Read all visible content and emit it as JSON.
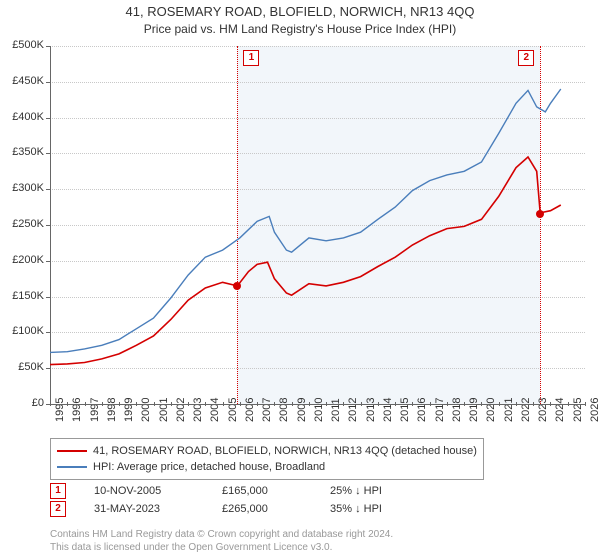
{
  "title": "41, ROSEMARY ROAD, BLOFIELD, NORWICH, NR13 4QQ",
  "subtitle": "Price paid vs. HM Land Registry's House Price Index (HPI)",
  "chart": {
    "type": "line",
    "x_years": [
      1995,
      1996,
      1997,
      1998,
      1999,
      2000,
      2001,
      2002,
      2003,
      2004,
      2005,
      2006,
      2007,
      2008,
      2009,
      2010,
      2011,
      2012,
      2013,
      2014,
      2015,
      2016,
      2017,
      2018,
      2019,
      2020,
      2021,
      2022,
      2023,
      2024,
      2025,
      2026
    ],
    "xlim": [
      1995,
      2026
    ],
    "ylim": [
      0,
      500000
    ],
    "ytick_step": 50000,
    "y_prefix": "£",
    "y_suffixes": [
      "0",
      "50K",
      "100K",
      "150K",
      "200K",
      "250K",
      "300K",
      "350K",
      "400K",
      "450K",
      "500K"
    ],
    "grid_color": "#c8c8c8",
    "axis_color": "#666666",
    "background_color": "#ffffff",
    "span_shade_color": "#f2f6fa",
    "span_shade": [
      2005.86,
      2023.41
    ],
    "series": [
      {
        "key": "property",
        "label": "41, ROSEMARY ROAD, BLOFIELD, NORWICH, NR13 4QQ (detached house)",
        "color": "#d40000",
        "width": 1.6,
        "data": [
          [
            1995,
            55000
          ],
          [
            1996,
            56000
          ],
          [
            1997,
            58000
          ],
          [
            1998,
            63000
          ],
          [
            1999,
            70000
          ],
          [
            2000,
            82000
          ],
          [
            2001,
            95000
          ],
          [
            2002,
            118000
          ],
          [
            2003,
            145000
          ],
          [
            2004,
            162000
          ],
          [
            2005,
            170000
          ],
          [
            2005.86,
            165000
          ],
          [
            2006.5,
            185000
          ],
          [
            2007,
            195000
          ],
          [
            2007.6,
            198000
          ],
          [
            2008,
            175000
          ],
          [
            2008.7,
            155000
          ],
          [
            2009,
            152000
          ],
          [
            2010,
            168000
          ],
          [
            2011,
            165000
          ],
          [
            2012,
            170000
          ],
          [
            2013,
            178000
          ],
          [
            2014,
            192000
          ],
          [
            2015,
            205000
          ],
          [
            2016,
            222000
          ],
          [
            2017,
            235000
          ],
          [
            2018,
            245000
          ],
          [
            2019,
            248000
          ],
          [
            2020,
            258000
          ],
          [
            2021,
            290000
          ],
          [
            2022,
            330000
          ],
          [
            2022.7,
            345000
          ],
          [
            2023.2,
            325000
          ],
          [
            2023.41,
            265000
          ],
          [
            2023.6,
            268000
          ],
          [
            2024,
            270000
          ],
          [
            2024.6,
            278000
          ]
        ],
        "markers": [
          {
            "x": 2005.86,
            "y": 165000
          },
          {
            "x": 2023.41,
            "y": 265000
          }
        ]
      },
      {
        "key": "hpi",
        "label": "HPI: Average price, detached house, Broadland",
        "color": "#4a7ebb",
        "width": 1.4,
        "data": [
          [
            1995,
            72000
          ],
          [
            1996,
            73000
          ],
          [
            1997,
            77000
          ],
          [
            1998,
            82000
          ],
          [
            1999,
            90000
          ],
          [
            2000,
            105000
          ],
          [
            2001,
            120000
          ],
          [
            2002,
            148000
          ],
          [
            2003,
            180000
          ],
          [
            2004,
            205000
          ],
          [
            2005,
            215000
          ],
          [
            2006,
            232000
          ],
          [
            2007,
            255000
          ],
          [
            2007.7,
            262000
          ],
          [
            2008,
            240000
          ],
          [
            2008.7,
            215000
          ],
          [
            2009,
            212000
          ],
          [
            2010,
            232000
          ],
          [
            2011,
            228000
          ],
          [
            2012,
            232000
          ],
          [
            2013,
            240000
          ],
          [
            2014,
            258000
          ],
          [
            2015,
            275000
          ],
          [
            2016,
            298000
          ],
          [
            2017,
            312000
          ],
          [
            2018,
            320000
          ],
          [
            2019,
            325000
          ],
          [
            2020,
            338000
          ],
          [
            2021,
            378000
          ],
          [
            2022,
            420000
          ],
          [
            2022.7,
            438000
          ],
          [
            2023.2,
            415000
          ],
          [
            2023.7,
            408000
          ],
          [
            2024,
            420000
          ],
          [
            2024.6,
            440000
          ]
        ]
      }
    ],
    "event_lines": [
      {
        "num": "1",
        "x": 2005.86,
        "color": "#d40000"
      },
      {
        "num": "2",
        "x": 2023.41,
        "color": "#d40000"
      }
    ]
  },
  "legend": {
    "border_color": "#999999"
  },
  "events": [
    {
      "num": "1",
      "date": "10-NOV-2005",
      "price": "£165,000",
      "delta": "25% ↓ HPI",
      "color": "#d40000"
    },
    {
      "num": "2",
      "date": "31-MAY-2023",
      "price": "£265,000",
      "delta": "35% ↓ HPI",
      "color": "#d40000"
    }
  ],
  "footer": {
    "line1": "Contains HM Land Registry data © Crown copyright and database right 2024.",
    "line2": "This data is licensed under the Open Government Licence v3.0."
  },
  "fonts": {
    "title": 13,
    "subtitle": 12,
    "tick": 11,
    "legend": 11,
    "footer": 10
  }
}
